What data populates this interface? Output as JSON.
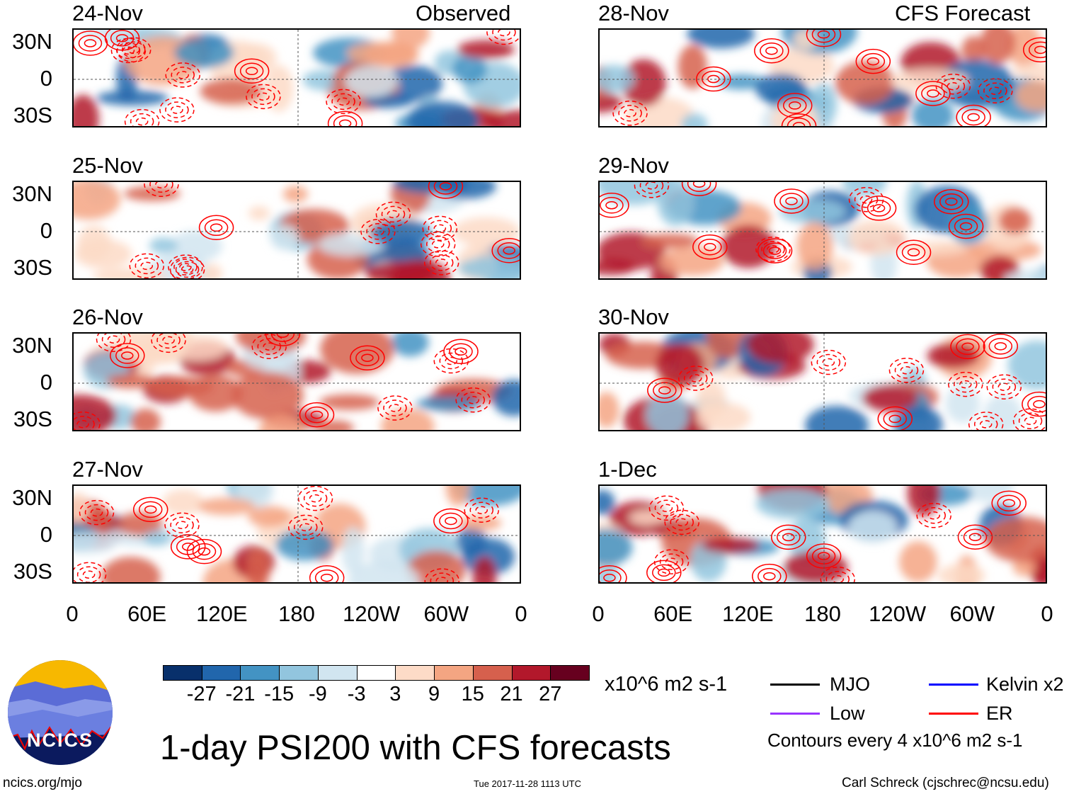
{
  "chart_data": {
    "type": "heatmap",
    "title": "1-day PSI200 with CFS forecasts",
    "units": "x10^6 m2 s-1",
    "column_headers": [
      "Observed",
      "CFS Forecast"
    ],
    "panels": [
      {
        "date": "24-Nov",
        "source": "Observed"
      },
      {
        "date": "25-Nov",
        "source": "Observed"
      },
      {
        "date": "26-Nov",
        "source": "Observed"
      },
      {
        "date": "27-Nov",
        "source": "Observed"
      },
      {
        "date": "28-Nov",
        "source": "CFS Forecast"
      },
      {
        "date": "29-Nov",
        "source": "CFS Forecast"
      },
      {
        "date": "30-Nov",
        "source": "CFS Forecast"
      },
      {
        "date": "1-Dec",
        "source": "CFS Forecast"
      }
    ],
    "lat_ticks": [
      "30N",
      "0",
      "30S"
    ],
    "lon_ticks": [
      "0",
      "60E",
      "120E",
      "180",
      "120W",
      "60W",
      "0"
    ],
    "colorbar": {
      "levels": [
        "-27",
        "-21",
        "-15",
        "-9",
        "-3",
        "3",
        "9",
        "15",
        "21",
        "27"
      ],
      "colors": [
        "#08306b",
        "#2166ac",
        "#4393c3",
        "#92c5de",
        "#d1e5f0",
        "#ffffff",
        "#fddbc7",
        "#f4a582",
        "#d6604d",
        "#b2182b",
        "#67001f"
      ]
    },
    "legend": [
      {
        "label": "MJO",
        "color": "#000000"
      },
      {
        "label": "Kelvin x2",
        "color": "#0000ff"
      },
      {
        "label": "Low",
        "color": "#9933ff"
      },
      {
        "label": "ER",
        "color": "#ff0000"
      }
    ],
    "contour_note": "Contours every 4 x10^6 m2 s-1"
  },
  "footer": {
    "logo_text": "NCICS",
    "url": "ncics.org/mjo",
    "timestamp": "Tue 2017-11-28 1113 UTC",
    "author": "Carl Schreck (cjschrec@ncsu.edu)"
  }
}
